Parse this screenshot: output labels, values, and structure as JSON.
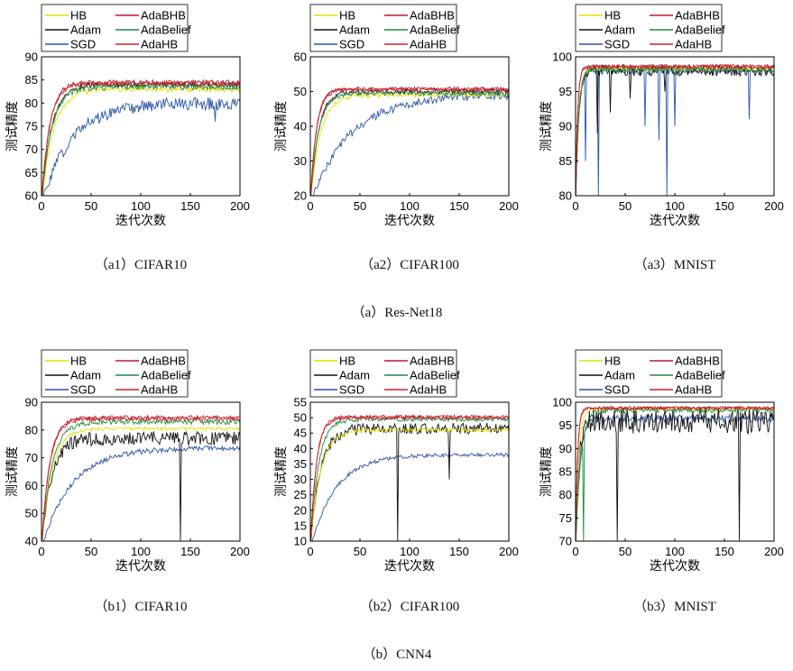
{
  "figure": {
    "x_label": "迭代次数",
    "y_label": "测试精度",
    "group_captions": [
      "（a）Res-Net18",
      "（b）CNN4"
    ]
  },
  "chart_data": [
    {
      "id": "a1",
      "caption": "（a1）CIFAR10",
      "type": "line",
      "xlim": [
        0,
        200
      ],
      "ylim": [
        60,
        90
      ],
      "xticks": [
        0,
        50,
        100,
        150,
        200
      ],
      "yticks": [
        60,
        65,
        70,
        75,
        80,
        85,
        90
      ],
      "series": [
        {
          "name": "HB",
          "color": "#e8e000",
          "end": 83.0,
          "tau": 12,
          "noise": 0.6,
          "dips": []
        },
        {
          "name": "AdaBHB",
          "color": "#c0182a",
          "end": 84.5,
          "tau": 8,
          "noise": 0.5,
          "dips": []
        },
        {
          "name": "Adam",
          "color": "#111111",
          "end": 84.0,
          "tau": 10,
          "noise": 0.6,
          "dips": []
        },
        {
          "name": "AdaBelief",
          "color": "#1f8a3a",
          "end": 83.5,
          "tau": 10,
          "noise": 0.6,
          "dips": []
        },
        {
          "name": "SGD",
          "color": "#2a55a8",
          "end": 80.0,
          "tau": 30,
          "noise": 1.4,
          "dips": [
            [
              175,
              76
            ]
          ]
        },
        {
          "name": "AdaHB",
          "color": "#d0202a",
          "end": 84.2,
          "tau": 8,
          "noise": 0.5,
          "dips": []
        }
      ]
    },
    {
      "id": "a2",
      "caption": "（a2）CIFAR100",
      "type": "line",
      "xlim": [
        0,
        200
      ],
      "ylim": [
        20,
        60
      ],
      "xticks": [
        0,
        50,
        100,
        150,
        200
      ],
      "yticks": [
        20,
        30,
        40,
        50,
        60
      ],
      "series": [
        {
          "name": "HB",
          "color": "#e8e000",
          "end": 49.0,
          "tau": 10,
          "noise": 0.6,
          "dips": []
        },
        {
          "name": "AdaBHB",
          "color": "#c0182a",
          "end": 50.8,
          "tau": 6,
          "noise": 0.5,
          "dips": []
        },
        {
          "name": "Adam",
          "color": "#111111",
          "end": 50.0,
          "tau": 8,
          "noise": 0.7,
          "dips": []
        },
        {
          "name": "AdaBelief",
          "color": "#1f8a3a",
          "end": 49.5,
          "tau": 8,
          "noise": 0.6,
          "dips": []
        },
        {
          "name": "SGD",
          "color": "#2a55a8",
          "end": 49.0,
          "tau": 40,
          "noise": 1.2,
          "dips": []
        },
        {
          "name": "AdaHB",
          "color": "#d0202a",
          "end": 50.5,
          "tau": 6,
          "noise": 0.5,
          "dips": []
        }
      ]
    },
    {
      "id": "a3",
      "caption": "（a3）MNIST",
      "type": "line",
      "xlim": [
        0,
        200
      ],
      "ylim": [
        80,
        100
      ],
      "xticks": [
        0,
        50,
        100,
        150,
        200
      ],
      "yticks": [
        80,
        85,
        90,
        95,
        100
      ],
      "series": [
        {
          "name": "HB",
          "color": "#e8e000",
          "end": 98.3,
          "tau": 3,
          "noise": 0.3,
          "dips": []
        },
        {
          "name": "AdaBHB",
          "color": "#c0182a",
          "end": 98.6,
          "tau": 2,
          "noise": 0.3,
          "dips": []
        },
        {
          "name": "Adam",
          "color": "#111111",
          "end": 98.0,
          "tau": 3,
          "noise": 0.8,
          "dips": [
            [
              22,
              89
            ],
            [
              35,
              92
            ],
            [
              55,
              94
            ],
            [
              90,
              95
            ]
          ]
        },
        {
          "name": "AdaBelief",
          "color": "#1f8a3a",
          "end": 98.2,
          "tau": 3,
          "noise": 0.4,
          "dips": []
        },
        {
          "name": "SGD",
          "color": "#2a55a8",
          "end": 98.0,
          "tau": 3,
          "noise": 0.6,
          "dips": [
            [
              10,
              85
            ],
            [
              23,
              80
            ],
            [
              70,
              90
            ],
            [
              84,
              88
            ],
            [
              92,
              80
            ],
            [
              100,
              90
            ],
            [
              175,
              91
            ]
          ]
        },
        {
          "name": "AdaHB",
          "color": "#d0202a",
          "end": 98.6,
          "tau": 2,
          "noise": 0.3,
          "dips": []
        }
      ]
    },
    {
      "id": "b1",
      "caption": "（b1）CIFAR10",
      "type": "line",
      "xlim": [
        0,
        200
      ],
      "ylim": [
        40,
        90
      ],
      "xticks": [
        0,
        50,
        100,
        150,
        200
      ],
      "yticks": [
        40,
        50,
        60,
        70,
        80,
        90
      ],
      "series": [
        {
          "name": "HB",
          "color": "#e8e000",
          "end": 80.5,
          "tau": 10,
          "noise": 0.6,
          "dips": []
        },
        {
          "name": "AdaBHB",
          "color": "#c0182a",
          "end": 84.5,
          "tau": 8,
          "noise": 0.7,
          "dips": []
        },
        {
          "name": "Adam",
          "color": "#111111",
          "end": 77.0,
          "tau": 10,
          "noise": 2.5,
          "dips": [
            [
              140,
              40
            ]
          ]
        },
        {
          "name": "AdaBelief",
          "color": "#1f8a3a",
          "end": 83.0,
          "tau": 10,
          "noise": 1.0,
          "dips": []
        },
        {
          "name": "SGD",
          "color": "#2a55a8",
          "end": 73.5,
          "tau": 30,
          "noise": 0.9,
          "dips": []
        },
        {
          "name": "AdaHB",
          "color": "#d0202a",
          "end": 84.0,
          "tau": 8,
          "noise": 0.7,
          "dips": []
        }
      ]
    },
    {
      "id": "b2",
      "caption": "（b2）CIFAR100",
      "type": "line",
      "xlim": [
        0,
        200
      ],
      "ylim": [
        10,
        55
      ],
      "xticks": [
        0,
        50,
        100,
        150,
        200
      ],
      "yticks": [
        10,
        15,
        20,
        25,
        30,
        35,
        40,
        45,
        50,
        55
      ],
      "series": [
        {
          "name": "HB",
          "color": "#e8e000",
          "end": 46.0,
          "tau": 10,
          "noise": 0.6,
          "dips": []
        },
        {
          "name": "AdaBHB",
          "color": "#c0182a",
          "end": 50.0,
          "tau": 6,
          "noise": 0.6,
          "dips": []
        },
        {
          "name": "Adam",
          "color": "#111111",
          "end": 46.5,
          "tau": 10,
          "noise": 1.8,
          "dips": [
            [
              88,
              10
            ],
            [
              140,
              30
            ]
          ]
        },
        {
          "name": "AdaBelief",
          "color": "#1f8a3a",
          "end": 49.5,
          "tau": 8,
          "noise": 0.7,
          "dips": []
        },
        {
          "name": "SGD",
          "color": "#2a55a8",
          "end": 38.0,
          "tau": 25,
          "noise": 0.6,
          "dips": []
        },
        {
          "name": "AdaHB",
          "color": "#d0202a",
          "end": 50.3,
          "tau": 6,
          "noise": 0.6,
          "dips": []
        }
      ]
    },
    {
      "id": "b3",
      "caption": "（b3）MNIST",
      "type": "line",
      "xlim": [
        0,
        200
      ],
      "ylim": [
        70,
        100
      ],
      "xticks": [
        0,
        50,
        100,
        150,
        200
      ],
      "yticks": [
        70,
        75,
        80,
        85,
        90,
        95,
        100
      ],
      "series": [
        {
          "name": "HB",
          "color": "#e8e000",
          "end": 98.5,
          "tau": 3,
          "noise": 0.3,
          "dips": []
        },
        {
          "name": "AdaBHB",
          "color": "#c0182a",
          "end": 98.8,
          "tau": 2,
          "noise": 0.3,
          "dips": []
        },
        {
          "name": "Adam",
          "color": "#111111",
          "end": 96.0,
          "tau": 3,
          "noise": 2.8,
          "dips": [
            [
              42,
              70
            ],
            [
              165,
              70
            ]
          ]
        },
        {
          "name": "AdaBelief",
          "color": "#1f8a3a",
          "end": 98.3,
          "tau": 5,
          "noise": 0.6,
          "dips": [
            [
              8,
              70
            ]
          ]
        },
        {
          "name": "SGD",
          "color": "#2a55a8",
          "end": 96.5,
          "tau": 4,
          "noise": 0.8,
          "dips": []
        },
        {
          "name": "AdaHB",
          "color": "#d0202a",
          "end": 98.7,
          "tau": 2,
          "noise": 0.3,
          "dips": []
        }
      ]
    }
  ]
}
